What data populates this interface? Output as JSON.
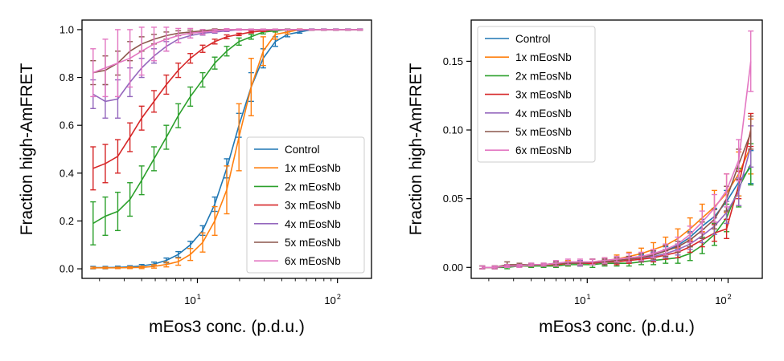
{
  "chart_data": [
    {
      "type": "line",
      "xscale": "log",
      "xlim": [
        1.5,
        175
      ],
      "ylim": [
        -0.04,
        1.04
      ],
      "xlabel": "mEos3 conc. (p.d.u.)",
      "ylabel": "Fraction high-AmFRET",
      "xticks": [
        {
          "value": 10,
          "base": "10",
          "exp": "1"
        },
        {
          "value": 100,
          "base": "10",
          "exp": "2"
        }
      ],
      "yticks": [
        {
          "value": 0.0,
          "label": "0.0"
        },
        {
          "value": 0.2,
          "label": "0.2"
        },
        {
          "value": 0.4,
          "label": "0.4"
        },
        {
          "value": 0.6,
          "label": "0.6"
        },
        {
          "value": 0.8,
          "label": "0.8"
        },
        {
          "value": 1.0,
          "label": "1.0"
        }
      ],
      "legend": "lower-right",
      "x": [
        1.8,
        2.2,
        2.7,
        3.3,
        4.0,
        4.9,
        6.0,
        7.3,
        8.9,
        10.9,
        13.3,
        16.2,
        19.8,
        24.2,
        29.5,
        36.0,
        44.0,
        53.7,
        65.5,
        80.0,
        97.6,
        119,
        145
      ],
      "series": [
        {
          "name": "Control",
          "color": "#1f77b4",
          "values": [
            0.005,
            0.005,
            0.006,
            0.008,
            0.012,
            0.02,
            0.035,
            0.06,
            0.1,
            0.16,
            0.27,
            0.42,
            0.6,
            0.76,
            0.88,
            0.95,
            0.98,
            0.99,
            1.0,
            1.0,
            1.0,
            1.0,
            1.0
          ],
          "errors": [
            0.005,
            0.005,
            0.005,
            0.005,
            0.006,
            0.008,
            0.01,
            0.012,
            0.015,
            0.02,
            0.03,
            0.04,
            0.05,
            0.06,
            0.04,
            0.02,
            0.01,
            0.005,
            0.003,
            0.003,
            0.003,
            0.003,
            0.003
          ]
        },
        {
          "name": "1x mEosNb",
          "color": "#ff7f0e",
          "values": [
            0.004,
            0.004,
            0.004,
            0.005,
            0.006,
            0.01,
            0.018,
            0.03,
            0.06,
            0.11,
            0.2,
            0.33,
            0.55,
            0.76,
            0.91,
            0.98,
            0.99,
            1.0,
            1.0,
            1.0,
            1.0,
            1.0,
            1.0
          ],
          "errors": [
            0.003,
            0.003,
            0.003,
            0.004,
            0.005,
            0.007,
            0.01,
            0.015,
            0.025,
            0.04,
            0.06,
            0.1,
            0.14,
            0.12,
            0.06,
            0.02,
            0.008,
            0.003,
            0.002,
            0.002,
            0.002,
            0.002,
            0.002
          ]
        },
        {
          "name": "2x mEosNb",
          "color": "#2ca02c",
          "values": [
            0.19,
            0.22,
            0.24,
            0.29,
            0.37,
            0.46,
            0.55,
            0.64,
            0.72,
            0.79,
            0.86,
            0.91,
            0.95,
            0.97,
            0.99,
            0.995,
            1.0,
            1.0,
            1.0,
            1.0,
            1.0,
            1.0,
            1.0
          ],
          "errors": [
            0.09,
            0.08,
            0.08,
            0.07,
            0.06,
            0.05,
            0.05,
            0.05,
            0.04,
            0.03,
            0.025,
            0.02,
            0.015,
            0.01,
            0.008,
            0.005,
            0.003,
            0.002,
            0.002,
            0.002,
            0.002,
            0.002,
            0.002
          ]
        },
        {
          "name": "3x mEosNb",
          "color": "#d62728",
          "values": [
            0.42,
            0.44,
            0.47,
            0.55,
            0.63,
            0.7,
            0.77,
            0.83,
            0.88,
            0.92,
            0.95,
            0.97,
            0.98,
            0.99,
            0.995,
            1.0,
            1.0,
            1.0,
            1.0,
            1.0,
            1.0,
            1.0,
            1.0
          ],
          "errors": [
            0.09,
            0.08,
            0.07,
            0.06,
            0.05,
            0.045,
            0.04,
            0.03,
            0.02,
            0.015,
            0.01,
            0.008,
            0.005,
            0.004,
            0.003,
            0.002,
            0.002,
            0.002,
            0.002,
            0.002,
            0.002,
            0.002,
            0.002
          ]
        },
        {
          "name": "4x mEosNb",
          "color": "#9467bd",
          "values": [
            0.73,
            0.7,
            0.71,
            0.78,
            0.84,
            0.89,
            0.93,
            0.96,
            0.975,
            0.985,
            0.99,
            0.995,
            1.0,
            1.0,
            1.0,
            1.0,
            1.0,
            1.0,
            1.0,
            1.0,
            1.0,
            1.0,
            1.0
          ],
          "errors": [
            0.06,
            0.07,
            0.08,
            0.06,
            0.04,
            0.03,
            0.02,
            0.015,
            0.01,
            0.008,
            0.005,
            0.003,
            0.002,
            0.002,
            0.002,
            0.002,
            0.002,
            0.002,
            0.002,
            0.002,
            0.002,
            0.002,
            0.002
          ]
        },
        {
          "name": "5x mEosNb",
          "color": "#8c564b",
          "values": [
            0.82,
            0.83,
            0.86,
            0.91,
            0.94,
            0.96,
            0.975,
            0.985,
            0.99,
            0.995,
            1.0,
            1.0,
            1.0,
            1.0,
            1.0,
            1.0,
            1.0,
            1.0,
            1.0,
            1.0,
            1.0,
            1.0,
            1.0
          ],
          "errors": [
            0.05,
            0.06,
            0.05,
            0.04,
            0.03,
            0.02,
            0.015,
            0.01,
            0.008,
            0.005,
            0.003,
            0.002,
            0.002,
            0.002,
            0.002,
            0.002,
            0.002,
            0.002,
            0.002,
            0.002,
            0.002,
            0.002,
            0.002
          ]
        },
        {
          "name": "6x mEosNb",
          "color": "#e377c2",
          "values": [
            0.82,
            0.84,
            0.86,
            0.88,
            0.91,
            0.94,
            0.96,
            0.975,
            0.985,
            0.99,
            0.995,
            1.0,
            1.0,
            1.0,
            1.0,
            1.0,
            1.0,
            1.0,
            1.0,
            1.0,
            1.0,
            1.0,
            1.0
          ],
          "errors": [
            0.1,
            0.12,
            0.14,
            0.12,
            0.1,
            0.07,
            0.05,
            0.03,
            0.02,
            0.01,
            0.006,
            0.004,
            0.003,
            0.002,
            0.002,
            0.002,
            0.002,
            0.002,
            0.002,
            0.002,
            0.002,
            0.002,
            0.002
          ]
        }
      ]
    },
    {
      "type": "line",
      "xscale": "log",
      "xlim": [
        1.5,
        175
      ],
      "ylim": [
        -0.008,
        0.18
      ],
      "xlabel": "mEos3 conc. (p.d.u.)",
      "ylabel": "Fraction high-AmFRET",
      "xticks": [
        {
          "value": 10,
          "base": "10",
          "exp": "1"
        },
        {
          "value": 100,
          "base": "10",
          "exp": "2"
        }
      ],
      "yticks": [
        {
          "value": 0.0,
          "label": "0.00"
        },
        {
          "value": 0.05,
          "label": "0.05"
        },
        {
          "value": 0.1,
          "label": "0.10"
        },
        {
          "value": 0.15,
          "label": "0.15"
        }
      ],
      "legend": "upper-left",
      "x": [
        1.8,
        2.2,
        2.7,
        3.3,
        4.0,
        4.9,
        6.0,
        7.3,
        8.9,
        10.9,
        13.3,
        16.2,
        19.8,
        24.2,
        29.5,
        36.0,
        44.0,
        53.7,
        65.5,
        80.0,
        97.6,
        119,
        145
      ],
      "series": [
        {
          "name": "Control",
          "color": "#1f77b4",
          "values": [
            0.0,
            0.0,
            0.001,
            0.001,
            0.002,
            0.002,
            0.002,
            0.003,
            0.003,
            0.003,
            0.004,
            0.005,
            0.006,
            0.007,
            0.009,
            0.012,
            0.016,
            0.022,
            0.03,
            0.037,
            0.048,
            0.062,
            0.073
          ],
          "errors": [
            0.001,
            0.001,
            0.001,
            0.001,
            0.001,
            0.001,
            0.001,
            0.001,
            0.001,
            0.001,
            0.001,
            0.001,
            0.002,
            0.002,
            0.002,
            0.003,
            0.003,
            0.004,
            0.005,
            0.006,
            0.008,
            0.01,
            0.012
          ]
        },
        {
          "name": "1x mEosNb",
          "color": "#ff7f0e",
          "values": [
            0.0,
            0.0,
            0.001,
            0.001,
            0.001,
            0.002,
            0.002,
            0.003,
            0.003,
            0.004,
            0.005,
            0.006,
            0.008,
            0.01,
            0.013,
            0.016,
            0.021,
            0.028,
            0.036,
            0.044,
            0.054,
            0.068,
            0.088
          ],
          "errors": [
            0.001,
            0.001,
            0.001,
            0.001,
            0.001,
            0.001,
            0.001,
            0.002,
            0.002,
            0.002,
            0.002,
            0.003,
            0.003,
            0.004,
            0.005,
            0.006,
            0.007,
            0.008,
            0.01,
            0.012,
            0.014,
            0.016,
            0.02
          ]
        },
        {
          "name": "2x mEosNb",
          "color": "#2ca02c",
          "values": [
            0.0,
            0.0,
            0.0,
            0.001,
            0.001,
            0.001,
            0.001,
            0.002,
            0.002,
            0.002,
            0.003,
            0.003,
            0.003,
            0.004,
            0.005,
            0.006,
            0.007,
            0.01,
            0.016,
            0.024,
            0.036,
            0.058,
            0.075
          ],
          "errors": [
            0.001,
            0.001,
            0.001,
            0.001,
            0.001,
            0.001,
            0.001,
            0.001,
            0.001,
            0.002,
            0.002,
            0.002,
            0.002,
            0.002,
            0.003,
            0.003,
            0.004,
            0.005,
            0.006,
            0.008,
            0.01,
            0.014,
            0.015
          ]
        },
        {
          "name": "3x mEosNb",
          "color": "#d62728",
          "values": [
            0.0,
            0.0,
            0.001,
            0.001,
            0.002,
            0.002,
            0.002,
            0.003,
            0.003,
            0.003,
            0.004,
            0.004,
            0.005,
            0.006,
            0.007,
            0.009,
            0.011,
            0.015,
            0.02,
            0.025,
            0.028,
            0.06,
            0.1
          ],
          "errors": [
            0.001,
            0.001,
            0.001,
            0.001,
            0.001,
            0.001,
            0.001,
            0.001,
            0.001,
            0.001,
            0.002,
            0.002,
            0.002,
            0.002,
            0.003,
            0.003,
            0.004,
            0.004,
            0.005,
            0.006,
            0.007,
            0.01,
            0.012
          ]
        },
        {
          "name": "4x mEosNb",
          "color": "#9467bd",
          "values": [
            0.0,
            0.0,
            0.001,
            0.001,
            0.002,
            0.002,
            0.003,
            0.003,
            0.003,
            0.004,
            0.004,
            0.005,
            0.006,
            0.007,
            0.008,
            0.01,
            0.013,
            0.017,
            0.023,
            0.03,
            0.04,
            0.055,
            0.088
          ],
          "errors": [
            0.001,
            0.001,
            0.001,
            0.001,
            0.001,
            0.001,
            0.001,
            0.001,
            0.002,
            0.002,
            0.002,
            0.002,
            0.002,
            0.003,
            0.003,
            0.003,
            0.004,
            0.004,
            0.005,
            0.006,
            0.008,
            0.01,
            0.015
          ]
        },
        {
          "name": "5x mEosNb",
          "color": "#8c564b",
          "values": [
            0.0,
            0.0,
            0.002,
            0.002,
            0.002,
            0.002,
            0.003,
            0.003,
            0.003,
            0.004,
            0.004,
            0.005,
            0.006,
            0.007,
            0.009,
            0.012,
            0.015,
            0.02,
            0.027,
            0.035,
            0.05,
            0.075,
            0.098
          ],
          "errors": [
            0.001,
            0.001,
            0.002,
            0.001,
            0.001,
            0.001,
            0.001,
            0.001,
            0.001,
            0.002,
            0.002,
            0.002,
            0.002,
            0.003,
            0.003,
            0.004,
            0.004,
            0.005,
            0.006,
            0.007,
            0.009,
            0.011,
            0.012
          ]
        },
        {
          "name": "6x mEosNb",
          "color": "#e377c2",
          "values": [
            0.0,
            0.0,
            0.001,
            0.001,
            0.002,
            0.002,
            0.003,
            0.004,
            0.004,
            0.004,
            0.005,
            0.006,
            0.007,
            0.008,
            0.01,
            0.013,
            0.017,
            0.024,
            0.033,
            0.043,
            0.056,
            0.078,
            0.15
          ],
          "errors": [
            0.001,
            0.001,
            0.001,
            0.001,
            0.001,
            0.001,
            0.002,
            0.002,
            0.002,
            0.002,
            0.002,
            0.002,
            0.003,
            0.003,
            0.003,
            0.004,
            0.005,
            0.006,
            0.008,
            0.01,
            0.012,
            0.015,
            0.022
          ]
        }
      ]
    }
  ]
}
